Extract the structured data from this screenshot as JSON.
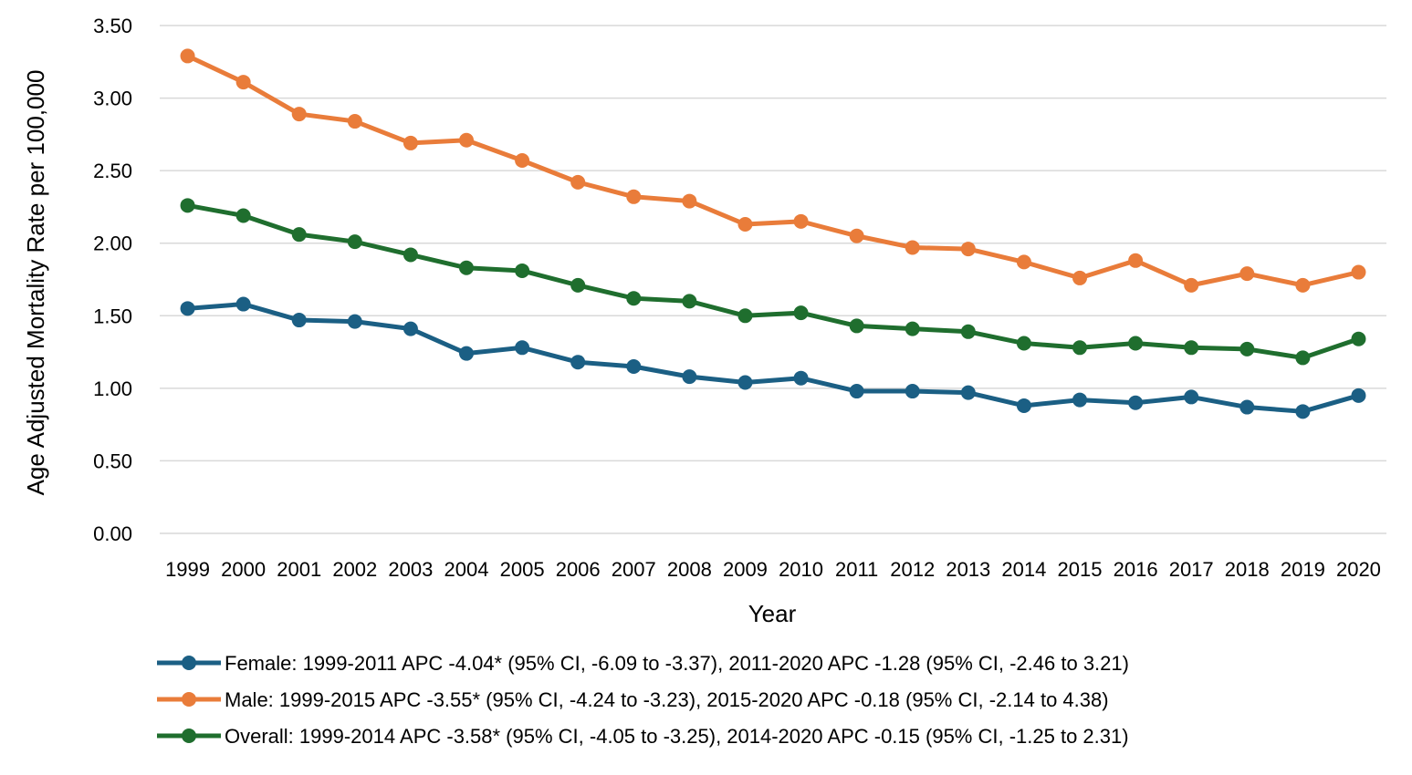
{
  "chart_data": {
    "type": "line",
    "xlabel": "Year",
    "ylabel": "Age Adjusted Mortality Rate per 100,000",
    "ylim": [
      0,
      3.5
    ],
    "yticks": [
      "0.00",
      "0.50",
      "1.00",
      "1.50",
      "2.00",
      "2.50",
      "3.00",
      "3.50"
    ],
    "grid": "horizontal",
    "legend_position": "bottom",
    "categories": [
      "1999",
      "2000",
      "2001",
      "2002",
      "2003",
      "2004",
      "2005",
      "2006",
      "2007",
      "2008",
      "2009",
      "2010",
      "2011",
      "2012",
      "2013",
      "2014",
      "2015",
      "2016",
      "2017",
      "2018",
      "2019",
      "2020"
    ],
    "series": [
      {
        "name": "Female: 1999-2011 APC -4.04* (95% CI, -6.09 to -3.37), 2011-2020 APC -1.28 (95% CI, -2.46 to 3.21)",
        "color": "#1b5f84",
        "values": [
          1.55,
          1.58,
          1.47,
          1.46,
          1.41,
          1.24,
          1.28,
          1.18,
          1.15,
          1.08,
          1.04,
          1.07,
          0.98,
          0.98,
          0.97,
          0.88,
          0.92,
          0.9,
          0.94,
          0.87,
          0.84,
          0.95
        ]
      },
      {
        "name": "Male: 1999-2015 APC -3.55* (95% CI, -4.24 to -3.23), 2015-2020 APC -0.18 (95% CI, -2.14 to 4.38)",
        "color": "#e97c3a",
        "values": [
          3.29,
          3.11,
          2.89,
          2.84,
          2.69,
          2.71,
          2.57,
          2.42,
          2.32,
          2.29,
          2.13,
          2.15,
          2.05,
          1.97,
          1.96,
          1.87,
          1.76,
          1.88,
          1.71,
          1.79,
          1.71,
          1.8
        ]
      },
      {
        "name": "Overall: 1999-2014 APC -3.58* (95% CI, -4.05 to -3.25), 2014-2020 APC -0.15 (95% CI, -1.25 to 2.31)",
        "color": "#1f6e2e",
        "values": [
          2.26,
          2.19,
          2.06,
          2.01,
          1.92,
          1.83,
          1.81,
          1.71,
          1.62,
          1.6,
          1.5,
          1.52,
          1.43,
          1.41,
          1.39,
          1.31,
          1.28,
          1.31,
          1.28,
          1.27,
          1.21,
          1.34
        ]
      }
    ]
  }
}
